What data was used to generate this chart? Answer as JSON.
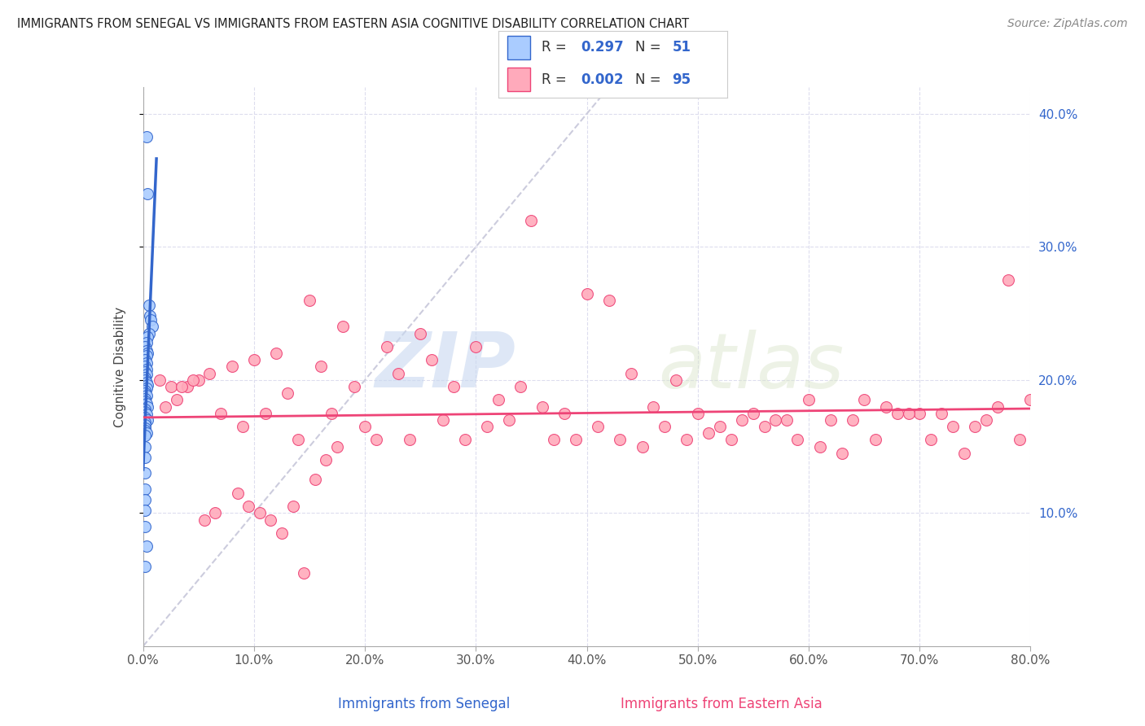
{
  "title": "IMMIGRANTS FROM SENEGAL VS IMMIGRANTS FROM EASTERN ASIA COGNITIVE DISABILITY CORRELATION CHART",
  "source": "Source: ZipAtlas.com",
  "xlabel_senegal": "Immigrants from Senegal",
  "xlabel_eastern_asia": "Immigrants from Eastern Asia",
  "ylabel": "Cognitive Disability",
  "xlim": [
    0,
    0.8
  ],
  "ylim": [
    0,
    0.42
  ],
  "xtick_positions": [
    0.0,
    0.1,
    0.2,
    0.3,
    0.4,
    0.5,
    0.6,
    0.7,
    0.8
  ],
  "xtick_labels": [
    "0.0%",
    "10.0%",
    "20.0%",
    "30.0%",
    "40.0%",
    "50.0%",
    "60.0%",
    "70.0%",
    "80.0%"
  ],
  "ytick_right": [
    0.1,
    0.2,
    0.3,
    0.4
  ],
  "ytick_right_labels": [
    "10.0%",
    "20.0%",
    "30.0%",
    "40.0%"
  ],
  "R_senegal": 0.297,
  "N_senegal": 51,
  "R_eastern": 0.002,
  "N_eastern": 95,
  "color_senegal": "#aaccff",
  "color_eastern": "#ffaabb",
  "trend_senegal": "#3366cc",
  "trend_eastern": "#ee4477",
  "ref_line_color": "#ccccdd",
  "watermark_zip": "ZIP",
  "watermark_atlas": "atlas",
  "senegal_x": [
    0.003,
    0.004,
    0.005,
    0.006,
    0.007,
    0.008,
    0.005,
    0.004,
    0.003,
    0.002,
    0.003,
    0.004,
    0.003,
    0.002,
    0.003,
    0.002,
    0.003,
    0.002,
    0.003,
    0.002,
    0.002,
    0.003,
    0.004,
    0.003,
    0.002,
    0.002,
    0.003,
    0.002,
    0.002,
    0.003,
    0.004,
    0.002,
    0.002,
    0.003,
    0.002,
    0.004,
    0.002,
    0.002,
    0.002,
    0.002,
    0.003,
    0.002,
    0.002,
    0.002,
    0.002,
    0.002,
    0.002,
    0.002,
    0.002,
    0.003,
    0.002
  ],
  "senegal_y": [
    0.383,
    0.34,
    0.256,
    0.248,
    0.245,
    0.24,
    0.235,
    0.232,
    0.228,
    0.225,
    0.222,
    0.22,
    0.218,
    0.215,
    0.213,
    0.21,
    0.208,
    0.206,
    0.204,
    0.202,
    0.2,
    0.198,
    0.196,
    0.194,
    0.192,
    0.19,
    0.188,
    0.186,
    0.184,
    0.182,
    0.18,
    0.178,
    0.176,
    0.174,
    0.172,
    0.17,
    0.168,
    0.166,
    0.164,
    0.162,
    0.16,
    0.158,
    0.15,
    0.142,
    0.13,
    0.118,
    0.11,
    0.102,
    0.09,
    0.075,
    0.06
  ],
  "eastern_x": [
    0.35,
    0.4,
    0.42,
    0.15,
    0.18,
    0.22,
    0.25,
    0.3,
    0.1,
    0.12,
    0.08,
    0.06,
    0.05,
    0.04,
    0.03,
    0.02,
    0.07,
    0.09,
    0.11,
    0.13,
    0.16,
    0.19,
    0.23,
    0.26,
    0.28,
    0.32,
    0.34,
    0.36,
    0.38,
    0.44,
    0.46,
    0.48,
    0.5,
    0.52,
    0.55,
    0.58,
    0.6,
    0.62,
    0.65,
    0.7,
    0.75,
    0.78,
    0.14,
    0.17,
    0.2,
    0.24,
    0.27,
    0.31,
    0.33,
    0.37,
    0.39,
    0.41,
    0.43,
    0.45,
    0.47,
    0.49,
    0.51,
    0.53,
    0.56,
    0.59,
    0.61,
    0.63,
    0.66,
    0.68,
    0.71,
    0.73,
    0.76,
    0.79,
    0.21,
    0.29,
    0.57,
    0.64,
    0.67,
    0.72,
    0.74,
    0.77,
    0.54,
    0.69,
    0.8,
    0.015,
    0.025,
    0.035,
    0.045,
    0.055,
    0.065,
    0.085,
    0.095,
    0.105,
    0.115,
    0.125,
    0.135,
    0.145,
    0.155,
    0.165,
    0.175
  ],
  "eastern_y": [
    0.32,
    0.265,
    0.26,
    0.26,
    0.24,
    0.225,
    0.235,
    0.225,
    0.215,
    0.22,
    0.21,
    0.205,
    0.2,
    0.195,
    0.185,
    0.18,
    0.175,
    0.165,
    0.175,
    0.19,
    0.21,
    0.195,
    0.205,
    0.215,
    0.195,
    0.185,
    0.195,
    0.18,
    0.175,
    0.205,
    0.18,
    0.2,
    0.175,
    0.165,
    0.175,
    0.17,
    0.185,
    0.17,
    0.185,
    0.175,
    0.165,
    0.275,
    0.155,
    0.175,
    0.165,
    0.155,
    0.17,
    0.165,
    0.17,
    0.155,
    0.155,
    0.165,
    0.155,
    0.15,
    0.165,
    0.155,
    0.16,
    0.155,
    0.165,
    0.155,
    0.15,
    0.145,
    0.155,
    0.175,
    0.155,
    0.165,
    0.17,
    0.155,
    0.155,
    0.155,
    0.17,
    0.17,
    0.18,
    0.175,
    0.145,
    0.18,
    0.17,
    0.175,
    0.185,
    0.2,
    0.195,
    0.195,
    0.2,
    0.095,
    0.1,
    0.115,
    0.105,
    0.1,
    0.095,
    0.085,
    0.105,
    0.055,
    0.125,
    0.14,
    0.15
  ]
}
